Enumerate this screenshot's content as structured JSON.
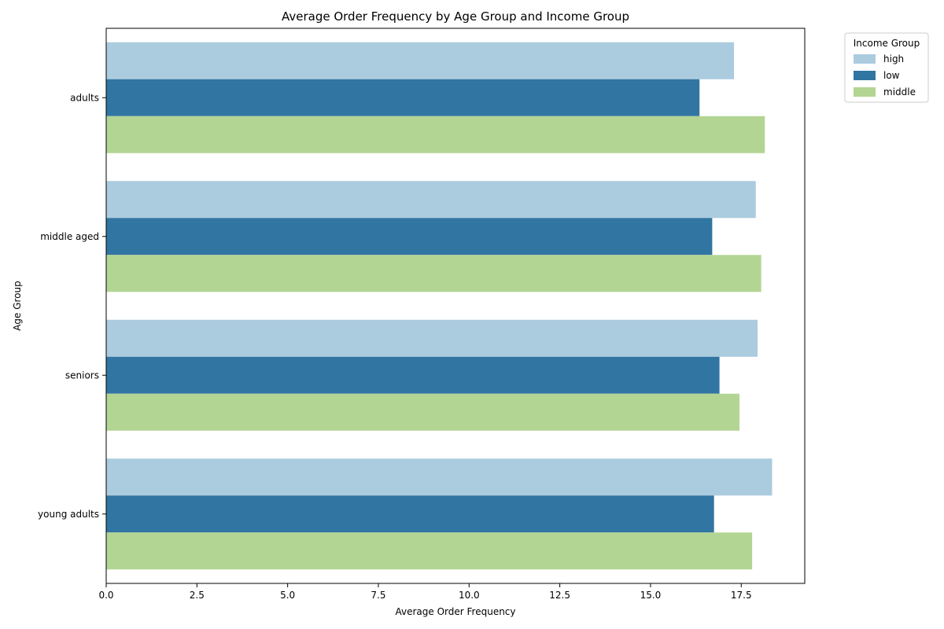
{
  "chart_data": {
    "type": "bar",
    "orientation": "horizontal",
    "title": "Average Order Frequency by Age Group and Income Group",
    "xlabel": "Average Order Frequency",
    "ylabel": "Age Group",
    "categories": [
      "adults",
      "middle aged",
      "seniors",
      "young adults"
    ],
    "xlim": [
      0,
      19.25
    ],
    "xticks": [
      "0.0",
      "2.5",
      "5.0",
      "7.5",
      "10.0",
      "12.5",
      "15.0",
      "17.5"
    ],
    "grid": false,
    "legend": {
      "title": "Income Group",
      "placement": "outside-top-right"
    },
    "series": [
      {
        "name": "high",
        "color": "#abcbdf",
        "values": [
          17.3,
          17.9,
          17.95,
          18.35
        ]
      },
      {
        "name": "low",
        "color": "#3175a2",
        "values": [
          16.35,
          16.7,
          16.9,
          16.75
        ]
      },
      {
        "name": "middle",
        "color": "#b3d593",
        "values": [
          18.15,
          18.05,
          17.45,
          17.8
        ]
      }
    ]
  }
}
